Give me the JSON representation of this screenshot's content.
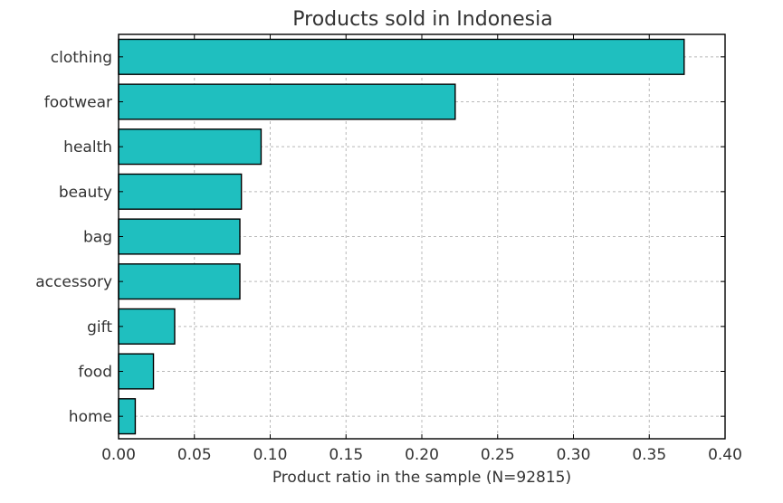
{
  "chart_data": {
    "type": "bar",
    "orientation": "horizontal",
    "title": "Products sold in Indonesia",
    "xlabel": "Product ratio in the sample (N=92815)",
    "ylabel": "",
    "categories": [
      "clothing",
      "footwear",
      "health",
      "beauty",
      "bag",
      "accessory",
      "gift",
      "food",
      "home"
    ],
    "values": [
      0.373,
      0.222,
      0.094,
      0.081,
      0.08,
      0.08,
      0.037,
      0.023,
      0.011
    ],
    "xlim": [
      0,
      0.4
    ],
    "xticks": [
      "0.00",
      "0.05",
      "0.10",
      "0.15",
      "0.20",
      "0.25",
      "0.30",
      "0.35",
      "0.40"
    ],
    "grid": true,
    "bar_color": "#1fbfbf"
  }
}
